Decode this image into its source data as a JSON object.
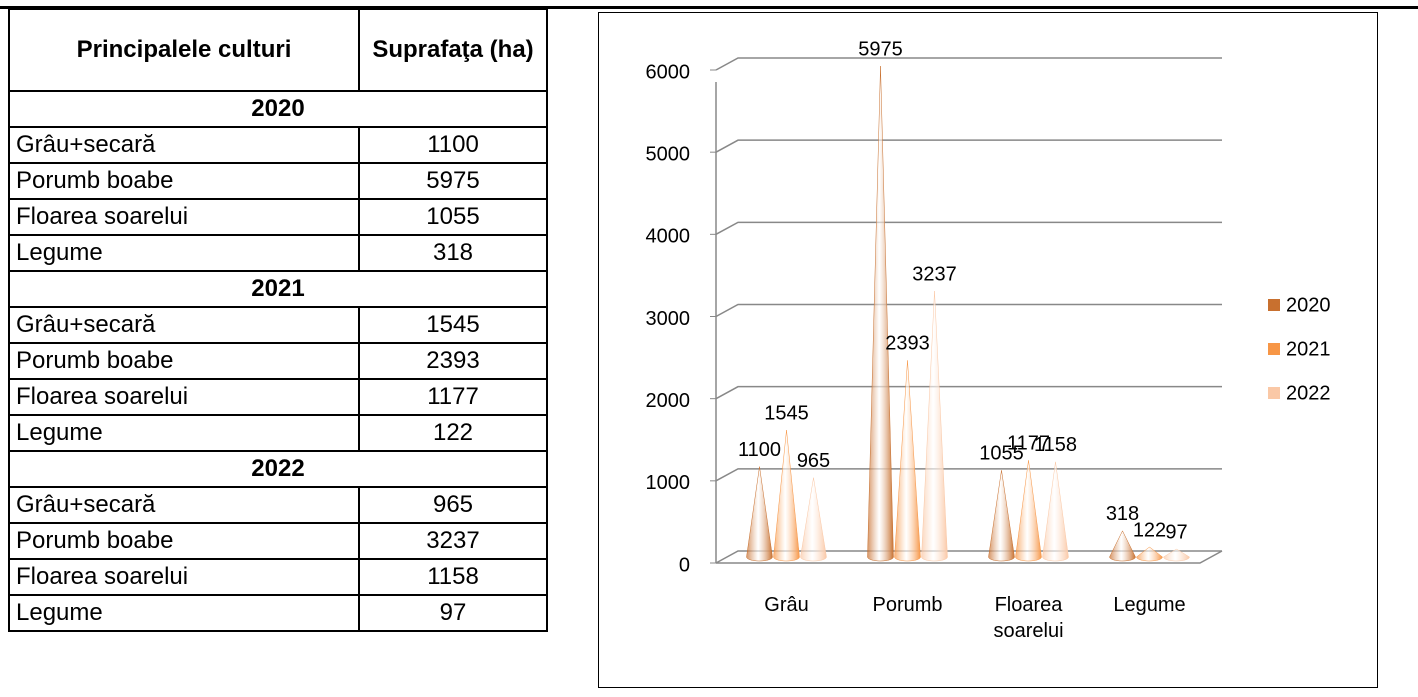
{
  "table": {
    "header": [
      "Principalele culturi",
      "Suprafaţa (ha)"
    ],
    "groups": [
      {
        "year": "2020",
        "rows": [
          [
            "Grâu+secară",
            1100
          ],
          [
            "Porumb boabe",
            5975
          ],
          [
            "Floarea soarelui",
            1055
          ],
          [
            "Legume",
            318
          ]
        ]
      },
      {
        "year": "2021",
        "rows": [
          [
            "Grâu+secară",
            1545
          ],
          [
            "Porumb boabe",
            2393
          ],
          [
            "Floarea soarelui",
            1177
          ],
          [
            "Legume",
            122
          ]
        ]
      },
      {
        "year": "2022",
        "rows": [
          [
            "Grâu+secară",
            965
          ],
          [
            "Porumb boabe",
            3237
          ],
          [
            "Floarea soarelui",
            1158
          ],
          [
            "Legume",
            97
          ]
        ]
      }
    ]
  },
  "chart_data": {
    "type": "bar",
    "categories": [
      "Grâu",
      "Porumb",
      "Floarea soarelui",
      "Legume"
    ],
    "series": [
      {
        "name": "2020",
        "color": "#c8702f",
        "values": [
          1100,
          5975,
          1055,
          318
        ]
      },
      {
        "name": "2021",
        "color": "#f79646",
        "values": [
          1545,
          2393,
          1177,
          122
        ]
      },
      {
        "name": "2022",
        "color": "#fac8a6",
        "values": [
          965,
          3237,
          1158,
          97
        ]
      }
    ],
    "ylim": [
      0,
      6000
    ],
    "yticks": [
      0,
      1000,
      2000,
      3000,
      4000,
      5000,
      6000
    ],
    "grid": true,
    "legend": "right"
  }
}
